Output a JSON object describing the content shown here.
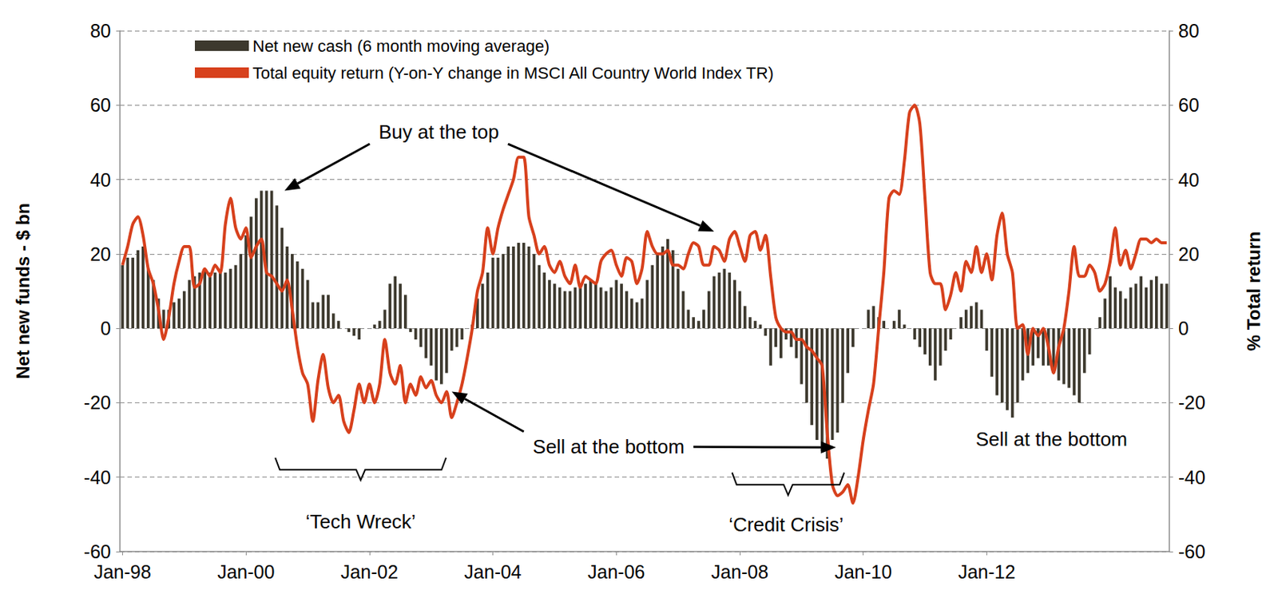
{
  "chart_data": {
    "type": "bar",
    "categories": [
      "Jan-98",
      null,
      null,
      null,
      null,
      null,
      null,
      null,
      null,
      null,
      null,
      null,
      null,
      null,
      null,
      null,
      null,
      null,
      null,
      null,
      null,
      null,
      null,
      null,
      "Jan-00",
      null,
      null,
      null,
      null,
      null,
      null,
      null,
      null,
      null,
      null,
      null,
      null,
      null,
      null,
      null,
      null,
      null,
      null,
      null,
      null,
      null,
      null,
      null,
      "Jan-02",
      null,
      null,
      null,
      null,
      null,
      null,
      null,
      null,
      null,
      null,
      null,
      null,
      null,
      null,
      null,
      null,
      null,
      null,
      null,
      null,
      null,
      null,
      null,
      "Jan-04",
      null,
      null,
      null,
      null,
      null,
      null,
      null,
      null,
      null,
      null,
      null,
      null,
      null,
      null,
      null,
      null,
      null,
      null,
      null,
      null,
      null,
      null,
      null,
      "Jan-06",
      null,
      null,
      null,
      null,
      null,
      null,
      null,
      null,
      null,
      null,
      null,
      null,
      null,
      null,
      null,
      null,
      null,
      null,
      null,
      null,
      null,
      null,
      null,
      "Jan-08",
      null,
      null,
      null,
      null,
      null,
      null,
      null,
      null,
      null,
      null,
      null,
      null,
      null,
      null,
      null,
      null,
      null,
      null,
      null,
      null,
      null,
      null,
      null,
      "Jan-10",
      null,
      null,
      null,
      null,
      null,
      null,
      null,
      null,
      null,
      null,
      null,
      null,
      null,
      null,
      null,
      null,
      null,
      null,
      null,
      null,
      null,
      null,
      null,
      "Jan-12",
      null,
      null,
      null,
      null,
      null,
      null,
      null,
      null,
      null,
      null,
      null,
      null,
      null,
      null,
      null,
      null,
      null,
      null,
      null,
      null,
      null,
      null,
      null,
      null,
      null,
      null,
      null,
      null,
      null,
      null,
      null,
      null,
      null,
      null,
      null
    ],
    "series": [
      {
        "name": "Net new cash (6 month moving average)",
        "type": "bar",
        "color": "#3d392e",
        "values": [
          17,
          19,
          19,
          21,
          22,
          16,
          13,
          8,
          5,
          5,
          7,
          8,
          10,
          13,
          14,
          15,
          16,
          15,
          15,
          15,
          15,
          16,
          17,
          20,
          25,
          30,
          35,
          37,
          37,
          37,
          33,
          27,
          22,
          20,
          18,
          16,
          13,
          7,
          7,
          9,
          9,
          4,
          2,
          0,
          -1,
          -2,
          -3,
          0,
          0,
          1,
          2,
          5,
          12,
          14,
          12,
          9,
          -1,
          -3,
          -5,
          -8,
          -10,
          -14,
          -15,
          -12,
          -6,
          -5,
          -3,
          0,
          1,
          8,
          12,
          15,
          19,
          19,
          20,
          22,
          22,
          23,
          23,
          22,
          20,
          17,
          15,
          13,
          12,
          11,
          10,
          10,
          11,
          12,
          12,
          13,
          12,
          11,
          10,
          11,
          13,
          12,
          10,
          8,
          7,
          8,
          13,
          17,
          20,
          22,
          24,
          21,
          16,
          10,
          5,
          3,
          2,
          5,
          10,
          14,
          15,
          16,
          15,
          13,
          10,
          6,
          3,
          2,
          1,
          -2,
          -10,
          -5,
          -8,
          -3,
          -5,
          -8,
          -15,
          -20,
          -26,
          -30,
          -33,
          -35,
          -30,
          -28,
          -20,
          -12,
          -5,
          0,
          0,
          5,
          6,
          3,
          2,
          0,
          2,
          5,
          1,
          0,
          -3,
          -5,
          -7,
          -10,
          -14,
          -10,
          -6,
          -3,
          0,
          3,
          5,
          6,
          7,
          5,
          -6,
          -13,
          -18,
          -20,
          -22,
          -24,
          -20,
          -14,
          -12,
          -10,
          -8,
          -10,
          -10,
          -12,
          -14,
          -15,
          -16,
          -18,
          -20,
          -12,
          -7,
          0,
          3,
          8,
          14,
          11,
          10,
          8,
          11,
          12,
          14,
          11,
          13,
          14,
          12,
          12
        ]
      },
      {
        "name": "Total equity return (Y-on-Y change in MSCI All Country World Index TR)",
        "type": "line",
        "color": "#d7401c",
        "axis": "y2",
        "values": [
          17,
          22,
          28,
          30,
          25,
          16,
          12,
          5,
          -3,
          3,
          12,
          18,
          22,
          22,
          11,
          12,
          16,
          14,
          17,
          15,
          28,
          35,
          27,
          24,
          27,
          19,
          22,
          24,
          15,
          14,
          12,
          10,
          13,
          5,
          -5,
          -12,
          -15,
          -25,
          -14,
          -7,
          -16,
          -20,
          -18,
          -25,
          -28,
          -22,
          -15,
          -20,
          -15,
          -20,
          -15,
          -3,
          -12,
          -15,
          -10,
          -20,
          -15,
          -18,
          -13,
          -16,
          -14,
          -18,
          -20,
          -17,
          -24,
          -20,
          -15,
          -8,
          0,
          10,
          15,
          27,
          20,
          27,
          32,
          36,
          40,
          46,
          46,
          30,
          25,
          20,
          22,
          17,
          15,
          18,
          14,
          12,
          17,
          11,
          14,
          13,
          12,
          18,
          20,
          21,
          17,
          14,
          19,
          18,
          12,
          16,
          26,
          22,
          20,
          20,
          21,
          17,
          17,
          16,
          20,
          23,
          22,
          17,
          17,
          22,
          21,
          18,
          24,
          26,
          22,
          18,
          25,
          26,
          21,
          25,
          14,
          3,
          0,
          -1,
          -1,
          -3,
          -3,
          -5,
          -6,
          -8,
          -10,
          -28,
          -42,
          -45,
          -44,
          -42,
          -47,
          -40,
          -30,
          -22,
          -15,
          0,
          15,
          35,
          37,
          36,
          45,
          58,
          60,
          55,
          35,
          15,
          12,
          12,
          5,
          9,
          15,
          10,
          18,
          15,
          22,
          15,
          20,
          13,
          25,
          31,
          20,
          15,
          0,
          1,
          -7,
          0,
          -2,
          0,
          -5,
          -12,
          -5,
          0,
          10,
          22,
          14,
          14,
          17,
          15,
          10,
          12,
          18,
          27,
          17,
          21,
          16,
          20,
          24,
          24,
          23,
          24,
          23,
          23
        ]
      }
    ],
    "y_label": "Net new funds - $ bn",
    "y2_label": "% Total return",
    "ylim": [
      -60,
      80
    ],
    "yticks": [
      -60,
      -40,
      -20,
      0,
      20,
      40,
      60,
      80
    ],
    "y2lim": [
      -60,
      80
    ],
    "y2ticks": [
      -60,
      -40,
      -20,
      0,
      20,
      40,
      60,
      80
    ],
    "grid": true,
    "legend": "upper left",
    "annotations": [
      {
        "text": "Buy at the top",
        "x": 61.5,
        "y": 52.8,
        "arrows": [
          [
            31.5,
            37
          ],
          [
            115,
            26
          ]
        ]
      },
      {
        "text": "Sell at the bottom",
        "x": 94.5,
        "y": -31.8,
        "arrows": [
          [
            64,
            -17
          ],
          [
            138.7,
            -32
          ]
        ]
      },
      {
        "text": "Sell at the bottom",
        "x": 180.6,
        "y": -29.8
      },
      {
        "text": "‘Tech Wreck’",
        "x": 46.3,
        "y": -52,
        "span": [
          29.7,
          62.9
        ],
        "span_y": -38
      },
      {
        "text": "‘Credit Crisis’",
        "x": 129,
        "y": -52.8,
        "span": [
          118.5,
          140.3
        ],
        "span_y": -42
      }
    ]
  }
}
